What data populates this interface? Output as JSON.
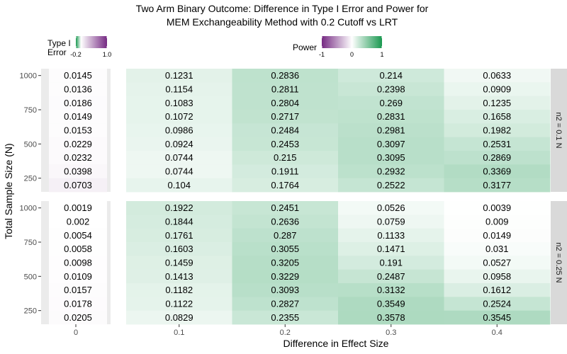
{
  "chart_data": {
    "type": "heatmap",
    "title_lines": [
      "Two Arm Binary Outcome: Difference in Type I Error and Power for",
      "MEM Exchangeability Method with 0.2 Cutoff vs LRT"
    ],
    "xlabel": "Difference in Effect Size",
    "ylabel": "Total Sample Size (N)",
    "x_tick_labels": [
      "0",
      "0.1",
      "0.2",
      "0.3",
      "0.4"
    ],
    "y_tick_labels": [
      "1000",
      "750",
      "500",
      "250"
    ],
    "y_tick_values": [
      1000,
      750,
      500,
      250
    ],
    "y_rows": [
      1000,
      900,
      800,
      700,
      600,
      500,
      400,
      300,
      200
    ],
    "y_range": [
      150,
      1050
    ],
    "facet_labels": [
      "n2 = 0.1 N",
      "n2 = 0.25 N"
    ],
    "legends": {
      "type1": {
        "title_lines": [
          "Type I",
          "Error"
        ],
        "tick_labels": [
          "-0.2",
          "1.0"
        ],
        "tick_values": [
          -0.2,
          1.0
        ],
        "range": [
          -0.2,
          1.0
        ],
        "low_color": "#1a9850",
        "mid_color": "#ffffff",
        "high_color": "#762a83"
      },
      "power": {
        "title": "Power",
        "tick_labels": [
          "-1",
          "0",
          "1"
        ],
        "tick_values": [
          -1,
          0,
          1
        ],
        "range": [
          -1,
          1
        ],
        "low_color": "#762a83",
        "mid_color": "#ffffff",
        "high_color": "#1a9850"
      }
    },
    "type1_values": [
      [
        0.0145,
        0.0136,
        0.0186,
        0.0149,
        0.0153,
        0.0229,
        0.0232,
        0.0398,
        0.0703
      ],
      [
        0.0019,
        0.002,
        0.0054,
        0.0058,
        0.0098,
        0.0109,
        0.0157,
        0.0178,
        0.0205
      ]
    ],
    "power_values": [
      [
        [
          0.1231,
          0.1154,
          0.1083,
          0.1072,
          0.0986,
          0.0924,
          0.0744,
          0.0744,
          0.104
        ],
        [
          0.2836,
          0.2811,
          0.2804,
          0.2717,
          0.2484,
          0.2453,
          0.215,
          0.1911,
          0.1764
        ],
        [
          0.214,
          0.2398,
          0.269,
          0.2831,
          0.2981,
          0.3097,
          0.3095,
          0.2932,
          0.2522
        ],
        [
          0.0633,
          0.0909,
          0.1235,
          0.1658,
          0.1982,
          0.2531,
          0.2869,
          0.3369,
          0.3177
        ]
      ],
      [
        [
          0.1922,
          0.1844,
          0.1761,
          0.1603,
          0.1459,
          0.1413,
          0.1182,
          0.1122,
          0.0829
        ],
        [
          0.2451,
          0.2636,
          0.287,
          0.3055,
          0.3205,
          0.3229,
          0.3093,
          0.2827,
          0.2355
        ],
        [
          0.0526,
          0.0759,
          0.1133,
          0.1471,
          0.191,
          0.2487,
          0.3132,
          0.3549,
          0.3578
        ],
        [
          0.0039,
          0.009,
          0.0149,
          0.031,
          0.0527,
          0.0958,
          0.1612,
          0.2524,
          0.3545
        ]
      ]
    ]
  }
}
